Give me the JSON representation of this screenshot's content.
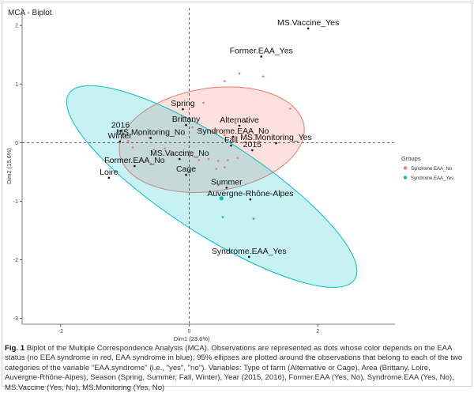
{
  "caption": {
    "label": "Fig. 1",
    "text": "Biplot of the Multiple Correspondence Analysis (MCA). Observations are represented as dots whose color depends on the EAA status (no EEA syndrome in red, EAA syndrome in blue); 95% ellipses are plotted around the observations that belong to each of the two categories of the variable \"EAA.syndrome\" (i.e., \"yes\", \"no\"). Variables: Type of farm (Alternative or Cage), Area (Brittany, Loire, Auvergne-Rhône-Alpes), Season (Spring, Summer, Fall, Winter), Year (2015, 2016), Former.EAA (Yes, No), Syndrome.EAA (Yes, No), MS.Vaccine (Yes, No), MS.Monitoring (Yes, No)"
  },
  "chart_data": {
    "type": "scatter",
    "title": "MCA - Biplot",
    "xlabel": "Dim1 (23.6%)",
    "ylabel": "Dim2 (15.6%)",
    "xlim": [
      -2.6,
      3.2
    ],
    "ylim": [
      -3.1,
      2.3
    ],
    "x_ticks": [
      -2,
      0,
      2
    ],
    "y_ticks": [
      -3,
      -2,
      -1,
      0,
      1,
      2
    ],
    "grid": false,
    "legend": {
      "title": "Groups",
      "position": "right"
    },
    "colors": {
      "red": "#F8766D",
      "blue": "#00BFC4"
    },
    "series": [
      {
        "name": "Syndrome.EAA_No",
        "color": "#F8766D",
        "points": [
          [
            0.78,
            1.18
          ],
          [
            1.15,
            1.13
          ],
          [
            0.55,
            1.05
          ],
          [
            1.57,
            0.58
          ],
          [
            0.22,
            0.68
          ],
          [
            0.72,
            0.33
          ],
          [
            0.88,
            0.36
          ],
          [
            -0.05,
            0.31
          ],
          [
            0.05,
            0.26
          ],
          [
            0.18,
            0.22
          ],
          [
            0.38,
            0.18
          ],
          [
            0.55,
            0.13
          ],
          [
            0.68,
            0.1
          ],
          [
            0.92,
            0.06
          ],
          [
            -0.62,
            0.08
          ],
          [
            -0.78,
            0.13
          ],
          [
            -0.95,
            0.03
          ],
          [
            -0.88,
            -0.08
          ],
          [
            -0.38,
            -0.1
          ],
          [
            -0.28,
            -0.2
          ],
          [
            -0.12,
            -0.16
          ],
          [
            0.05,
            -0.22
          ],
          [
            0.15,
            -0.3
          ],
          [
            0.3,
            -0.28
          ],
          [
            0.45,
            -0.31
          ],
          [
            0.6,
            -0.3
          ],
          [
            0.75,
            -0.26
          ],
          [
            -0.6,
            -0.36
          ],
          [
            -1.25,
            -0.33
          ],
          [
            0.42,
            -0.45
          ],
          [
            0.55,
            -0.42
          ],
          [
            0.45,
            -0.73
          ],
          [
            -0.55,
            -0.12
          ]
        ]
      },
      {
        "name": "Syndrome.EAA_Yes",
        "color": "#00BFC4",
        "points": [
          [
            0.52,
            -1.27
          ],
          [
            1.0,
            -1.3
          ],
          [
            0.5,
            -0.95
          ]
        ],
        "centroid": [
          0.5,
          -0.95
        ]
      }
    ],
    "ellipses": [
      {
        "name": "Syndrome.EAA_No",
        "cx": 0.35,
        "cy": 0.05,
        "rx": 1.45,
        "ry": 0.88,
        "angle_deg": 8.5
      },
      {
        "name": "Syndrome.EAA_Yes",
        "cx": 0.35,
        "cy": -0.75,
        "rx": 2.65,
        "ry": 0.8,
        "angle_deg": -33
      }
    ],
    "variable_labels": [
      {
        "text": "MS.Vaccine_Yes",
        "x": 1.85,
        "y": 1.95
      },
      {
        "text": "Former.EAA_Yes",
        "x": 1.12,
        "y": 1.47
      },
      {
        "text": "Spring",
        "x": -0.1,
        "y": 0.57
      },
      {
        "text": "Brittany",
        "x": -0.05,
        "y": 0.3
      },
      {
        "text": "Alternative",
        "x": 0.78,
        "y": 0.29
      },
      {
        "text": "2016",
        "x": -1.07,
        "y": 0.2
      },
      {
        "text": "Syndrome.EAA_No",
        "x": 0.68,
        "y": 0.1
      },
      {
        "text": "MS.Monitoring_No",
        "x": -0.6,
        "y": 0.08
      },
      {
        "text": "Winter",
        "x": -1.08,
        "y": 0.02
      },
      {
        "text": "MS.Monitoring_Yes",
        "x": 1.35,
        "y": -0.01
      },
      {
        "text": "Fall",
        "x": 0.65,
        "y": -0.05
      },
      {
        "text": "2015",
        "x": 0.98,
        "y": -0.13
      },
      {
        "text": "MS.Vaccine_No",
        "x": -0.15,
        "y": -0.28
      },
      {
        "text": "Former.EAA_No",
        "x": -0.85,
        "y": -0.4
      },
      {
        "text": "Cage",
        "x": -0.05,
        "y": -0.55
      },
      {
        "text": "Loire",
        "x": -1.25,
        "y": -0.6
      },
      {
        "text": "Summer",
        "x": 0.58,
        "y": -0.77
      },
      {
        "text": "Auvergne-Rhône-Alpes",
        "x": 0.95,
        "y": -0.97
      },
      {
        "text": "Syndrome.EAA_Yes",
        "x": 0.93,
        "y": -1.95
      }
    ]
  }
}
